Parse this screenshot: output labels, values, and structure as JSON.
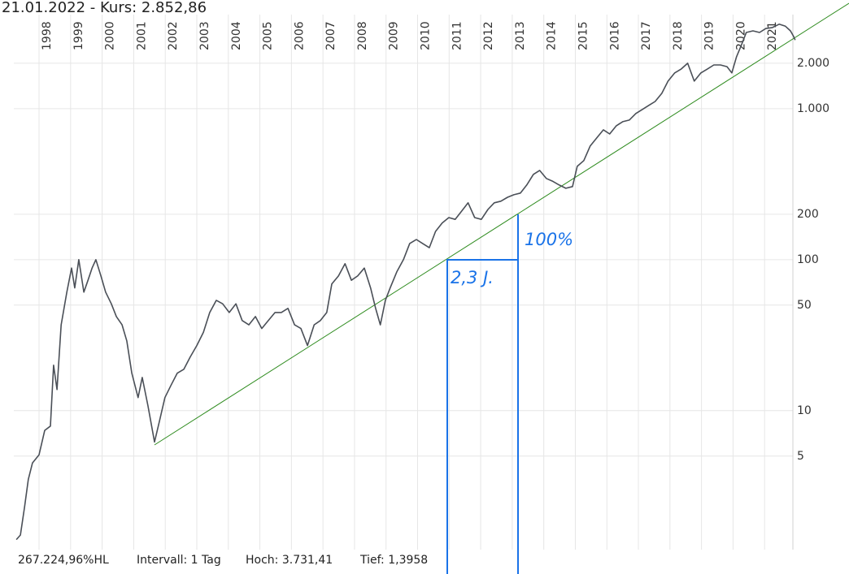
{
  "chart_data": {
    "type": "line",
    "title": "21.01.2022  - Kurs: 2.852,86",
    "footer": [
      "267.224,96%HL",
      "Intervall: 1 Tag",
      "Hoch:  3.731,41",
      "Tief: 1,3958"
    ],
    "annotations": [
      "2,3 J.",
      "100%"
    ],
    "log_scale": true,
    "grid": true,
    "xlim": [
      1997.2,
      2022.0
    ],
    "xticks": [
      1998,
      1999,
      2000,
      2001,
      2002,
      2003,
      2004,
      2005,
      2006,
      2007,
      2008,
      2009,
      2010,
      2011,
      2012,
      2013,
      2014,
      2015,
      2016,
      2017,
      2018,
      2019,
      2020,
      2021
    ],
    "ylim": [
      1.2,
      4200
    ],
    "yticks": [
      5,
      10,
      50,
      100,
      200,
      {
        "value": 1000,
        "label": "1.000"
      },
      {
        "value": 2000,
        "label": "2.000"
      }
    ],
    "series": [
      {
        "color": "#4a4f57",
        "x": [
          1997.28,
          1997.41,
          1997.54,
          1997.66,
          1997.79,
          1998.0,
          1998.18,
          1998.36,
          1998.46,
          1998.57,
          1998.7,
          1998.88,
          1999.03,
          1999.13,
          1999.26,
          1999.42,
          1999.55,
          1999.68,
          1999.8,
          1999.96,
          2000.11,
          2000.29,
          2000.45,
          2000.63,
          2000.78,
          2000.94,
          2001.14,
          2001.27,
          2001.45,
          2001.66,
          2001.81,
          2001.99,
          2002.18,
          2002.38,
          2002.59,
          2002.79,
          2003.0,
          2003.21,
          2003.41,
          2003.62,
          2003.82,
          2004.03,
          2004.24,
          2004.44,
          2004.65,
          2004.86,
          2005.06,
          2005.27,
          2005.48,
          2005.68,
          2005.89,
          2006.1,
          2006.3,
          2006.51,
          2006.72,
          2006.92,
          2007.12,
          2007.28,
          2007.49,
          2007.7,
          2007.9,
          2008.1,
          2008.31,
          2008.51,
          2008.67,
          2008.82,
          2008.98,
          2009.13,
          2009.34,
          2009.55,
          2009.75,
          2009.96,
          2010.16,
          2010.37,
          2010.57,
          2010.78,
          2010.99,
          2011.19,
          2011.4,
          2011.6,
          2011.81,
          2012.02,
          2012.23,
          2012.43,
          2012.64,
          2012.85,
          2013.05,
          2013.26,
          2013.46,
          2013.67,
          2013.87,
          2014.08,
          2014.29,
          2014.49,
          2014.7,
          2014.91,
          2015.06,
          2015.27,
          2015.47,
          2015.68,
          2015.89,
          2016.09,
          2016.3,
          2016.5,
          2016.71,
          2016.92,
          2017.12,
          2017.33,
          2017.53,
          2017.74,
          2017.94,
          2018.15,
          2018.36,
          2018.56,
          2018.77,
          2018.98,
          2019.19,
          2019.39,
          2019.6,
          2019.81,
          2019.96,
          2020.11,
          2020.27,
          2020.42,
          2020.63,
          2020.84,
          2021.04,
          2021.25,
          2021.46,
          2021.66,
          2021.82,
          2021.92,
          2021.97
        ],
        "values": [
          1.4,
          1.5,
          2.3,
          3.5,
          4.5,
          5.1,
          7.4,
          7.9,
          20,
          13.8,
          37,
          61,
          88,
          65,
          100,
          61,
          73,
          88,
          100,
          78,
          61,
          51,
          42,
          37,
          29,
          17.7,
          12.2,
          16.6,
          10.8,
          6.2,
          8.4,
          12.2,
          14.7,
          17.7,
          18.8,
          22.6,
          27,
          33,
          44.7,
          53.8,
          51,
          44.7,
          51,
          39.5,
          37,
          42,
          35,
          39.5,
          44.7,
          44.7,
          47.6,
          37,
          35,
          27,
          37,
          39.5,
          44.7,
          69,
          78,
          94,
          73,
          78,
          88,
          65,
          47.6,
          37,
          53.8,
          65,
          83,
          100,
          128,
          136,
          128,
          120,
          154,
          175,
          190,
          185,
          210,
          238,
          190,
          185,
          215,
          238,
          244,
          259,
          269,
          276,
          312,
          367,
          390,
          345,
          330,
          312,
          297,
          305,
          415,
          453,
          566,
          640,
          725,
          680,
          771,
          820,
          841,
          929,
          988,
          1052,
          1117,
          1264,
          1523,
          1726,
          1834,
          2000,
          1523,
          1726,
          1834,
          1950,
          1950,
          1900,
          1726,
          2210,
          2660,
          3200,
          3280,
          3200,
          3400,
          3450,
          3630,
          3520,
          3280,
          3010,
          2850
        ]
      }
    ]
  }
}
